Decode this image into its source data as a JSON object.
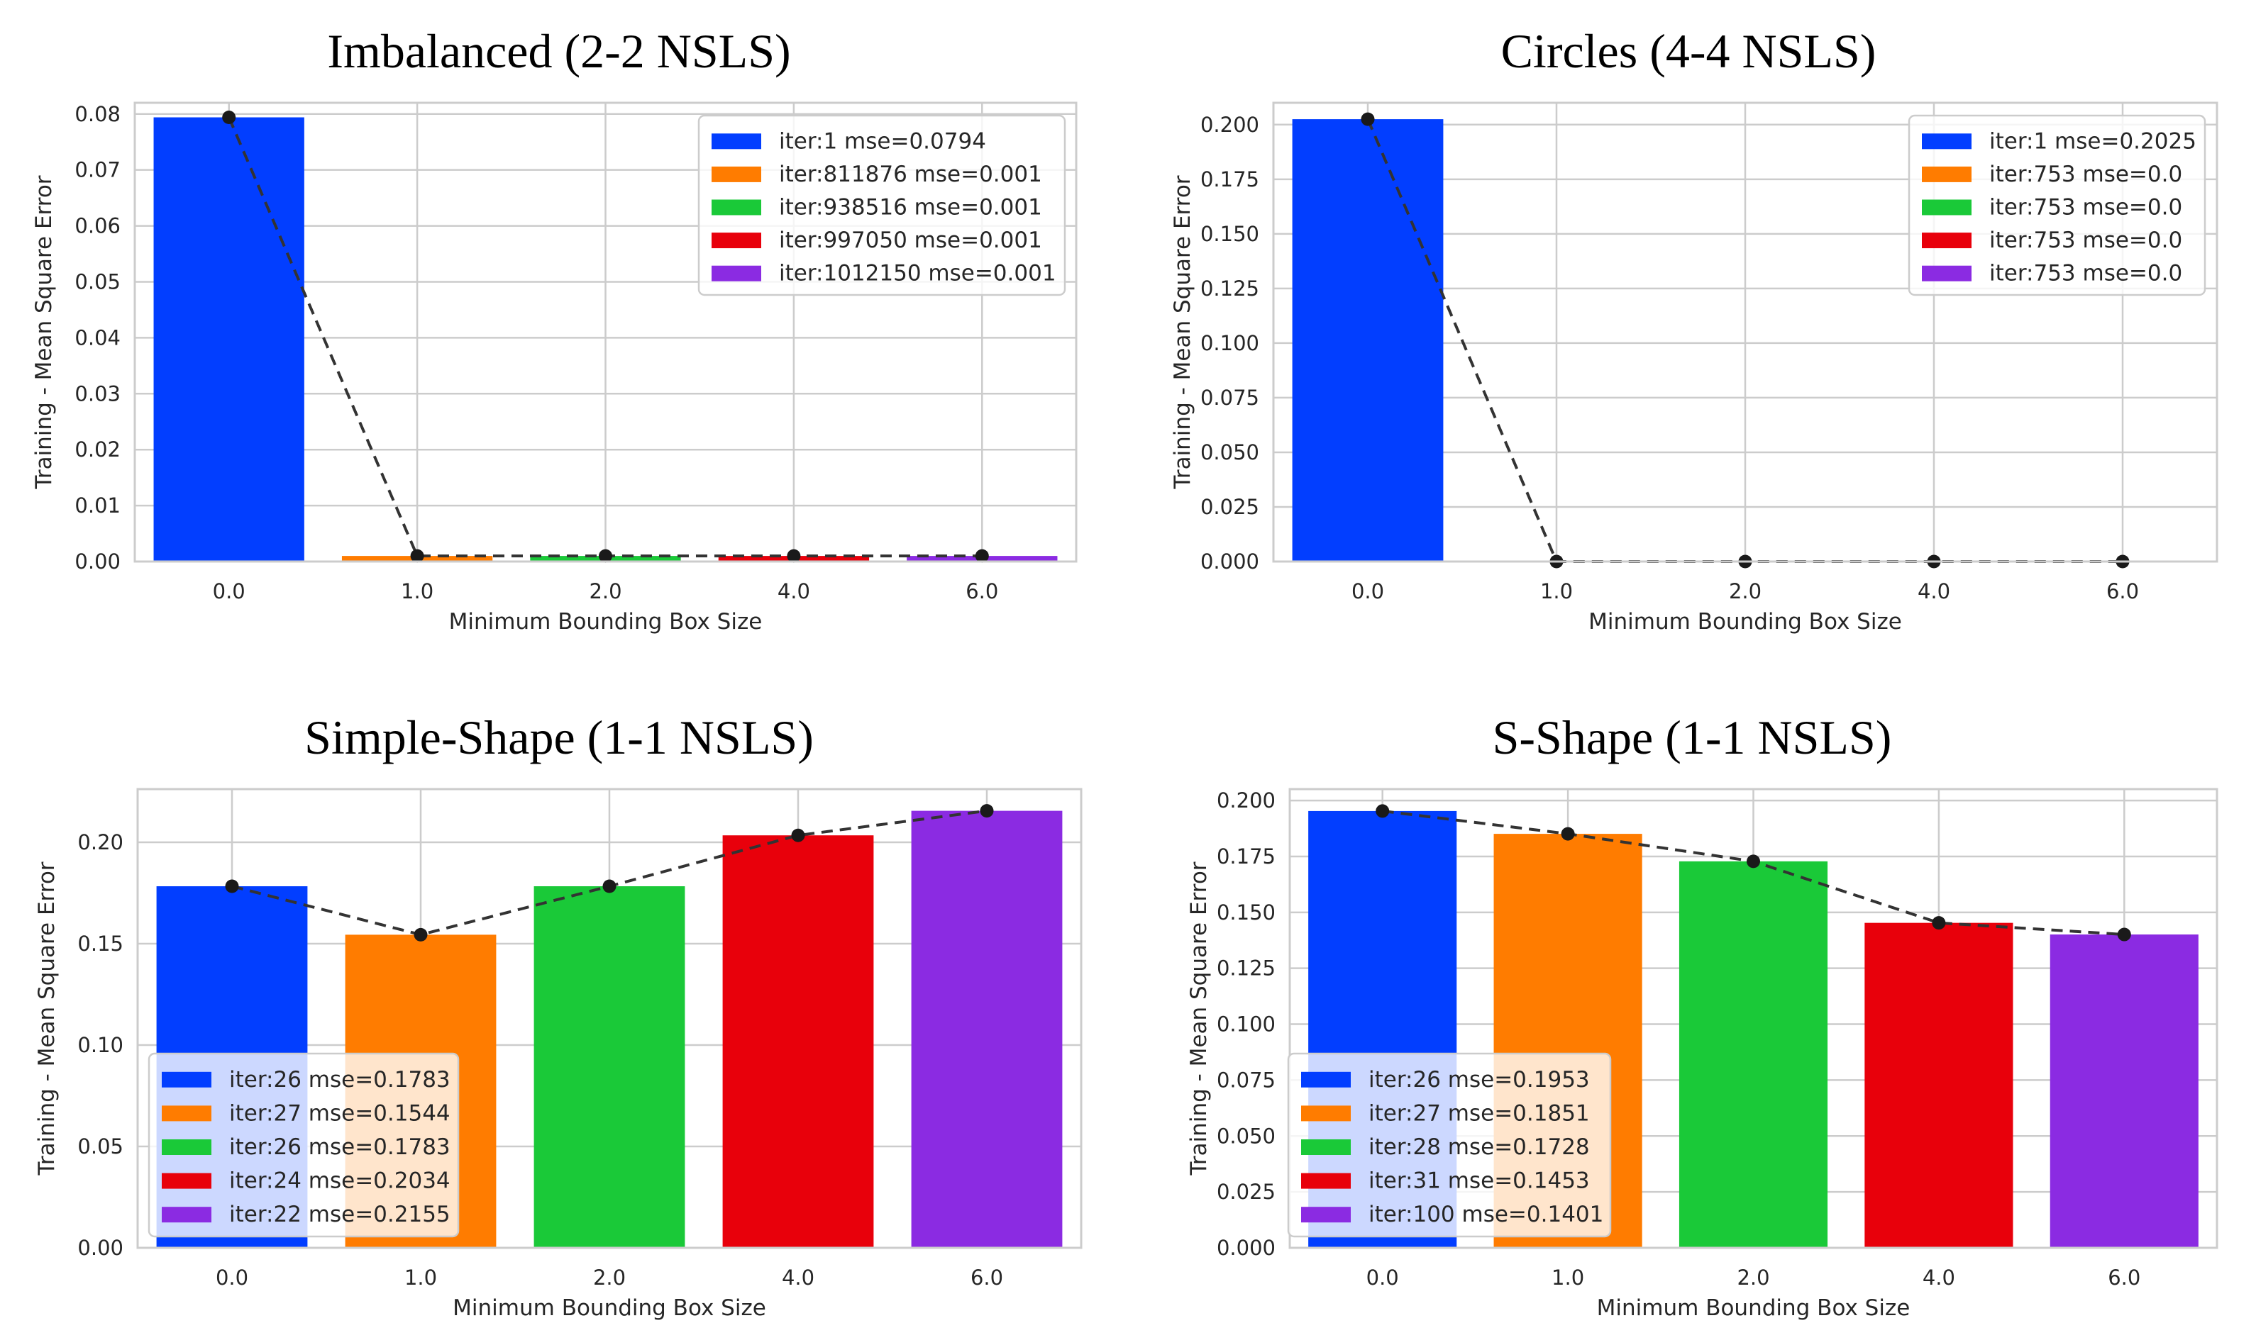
{
  "chart_data": [
    {
      "type": "bar",
      "title": "Imbalanced (2-2 NSLS)",
      "xlabel": "Minimum Bounding Box Size",
      "ylabel": "Training - Mean Square Error",
      "categories": [
        "0.0",
        "1.0",
        "2.0",
        "4.0",
        "6.0"
      ],
      "values": [
        0.0794,
        0.001,
        0.001,
        0.001,
        0.001
      ],
      "ylim": [
        0,
        0.082
      ],
      "yticks": [
        0.0,
        0.01,
        0.02,
        0.03,
        0.04,
        0.05,
        0.06,
        0.07,
        0.08
      ],
      "ytick_labels": [
        "0.00",
        "0.01",
        "0.02",
        "0.03",
        "0.04",
        "0.05",
        "0.06",
        "0.07",
        "0.08"
      ],
      "legend_position": "top-right",
      "legend": [
        "iter:1 mse=0.0794",
        "iter:811876 mse=0.001",
        "iter:938516 mse=0.001",
        "iter:997050 mse=0.001",
        "iter:1012150 mse=0.001"
      ],
      "colors": [
        "#023eff",
        "#ff7c00",
        "#1ac938",
        "#e8000b",
        "#8b2be2"
      ],
      "line": {
        "style": "dashed",
        "color": "#333333",
        "values": [
          0.0794,
          0.001,
          0.001,
          0.001,
          0.001
        ]
      },
      "grid": true
    },
    {
      "type": "bar",
      "title": "Circles (4-4 NSLS)",
      "xlabel": "Minimum Bounding Box Size",
      "ylabel": "Training - Mean Square Error",
      "categories": [
        "0.0",
        "1.0",
        "2.0",
        "4.0",
        "6.0"
      ],
      "values": [
        0.2025,
        0.0,
        0.0,
        0.0,
        0.0
      ],
      "ylim": [
        0,
        0.21
      ],
      "yticks": [
        0.0,
        0.025,
        0.05,
        0.075,
        0.1,
        0.125,
        0.15,
        0.175,
        0.2
      ],
      "ytick_labels": [
        "0.000",
        "0.025",
        "0.050",
        "0.075",
        "0.100",
        "0.125",
        "0.150",
        "0.175",
        "0.200"
      ],
      "legend_position": "top-right",
      "legend": [
        "iter:1 mse=0.2025",
        "iter:753 mse=0.0",
        "iter:753 mse=0.0",
        "iter:753 mse=0.0",
        "iter:753 mse=0.0"
      ],
      "colors": [
        "#023eff",
        "#ff7c00",
        "#1ac938",
        "#e8000b",
        "#8b2be2"
      ],
      "line": {
        "style": "dashed",
        "color": "#333333",
        "values": [
          0.2025,
          0.0,
          0.0,
          0.0,
          0.0
        ]
      },
      "grid": true
    },
    {
      "type": "bar",
      "title": "Simple-Shape (1-1 NSLS)",
      "xlabel": "Minimum Bounding Box Size",
      "ylabel": "Training - Mean Square Error",
      "categories": [
        "0.0",
        "1.0",
        "2.0",
        "4.0",
        "6.0"
      ],
      "values": [
        0.1783,
        0.1544,
        0.1783,
        0.2034,
        0.2155
      ],
      "ylim": [
        0,
        0.2262
      ],
      "yticks": [
        0.0,
        0.05,
        0.1,
        0.15,
        0.2
      ],
      "ytick_labels": [
        "0.00",
        "0.05",
        "0.10",
        "0.15",
        "0.20"
      ],
      "legend_position": "bottom-left",
      "legend": [
        "iter:26 mse=0.1783",
        "iter:27 mse=0.1544",
        "iter:26 mse=0.1783",
        "iter:24 mse=0.2034",
        "iter:22 mse=0.2155"
      ],
      "colors": [
        "#023eff",
        "#ff7c00",
        "#1ac938",
        "#e8000b",
        "#8b2be2"
      ],
      "line": {
        "style": "dashed",
        "color": "#333333",
        "values": [
          0.1783,
          0.1544,
          0.1783,
          0.2034,
          0.2155
        ]
      },
      "grid": true
    },
    {
      "type": "bar",
      "title": "S-Shape (1-1 NSLS)",
      "xlabel": "Minimum Bounding Box Size",
      "ylabel": "Training - Mean Square Error",
      "categories": [
        "0.0",
        "1.0",
        "2.0",
        "4.0",
        "6.0"
      ],
      "values": [
        0.1953,
        0.1851,
        0.1728,
        0.1453,
        0.1401
      ],
      "ylim": [
        0,
        0.2051
      ],
      "yticks": [
        0.0,
        0.025,
        0.05,
        0.075,
        0.1,
        0.125,
        0.15,
        0.175,
        0.2
      ],
      "ytick_labels": [
        "0.000",
        "0.025",
        "0.050",
        "0.075",
        "0.100",
        "0.125",
        "0.150",
        "0.175",
        "0.200"
      ],
      "legend_position": "bottom-left",
      "legend": [
        "iter:26 mse=0.1953",
        "iter:27 mse=0.1851",
        "iter:28 mse=0.1728",
        "iter:31 mse=0.1453",
        "iter:100 mse=0.1401"
      ],
      "colors": [
        "#023eff",
        "#ff7c00",
        "#1ac938",
        "#e8000b",
        "#8b2be2"
      ],
      "line": {
        "style": "dashed",
        "color": "#333333",
        "values": [
          0.1953,
          0.1851,
          0.1728,
          0.1453,
          0.1401
        ]
      },
      "grid": true
    }
  ]
}
